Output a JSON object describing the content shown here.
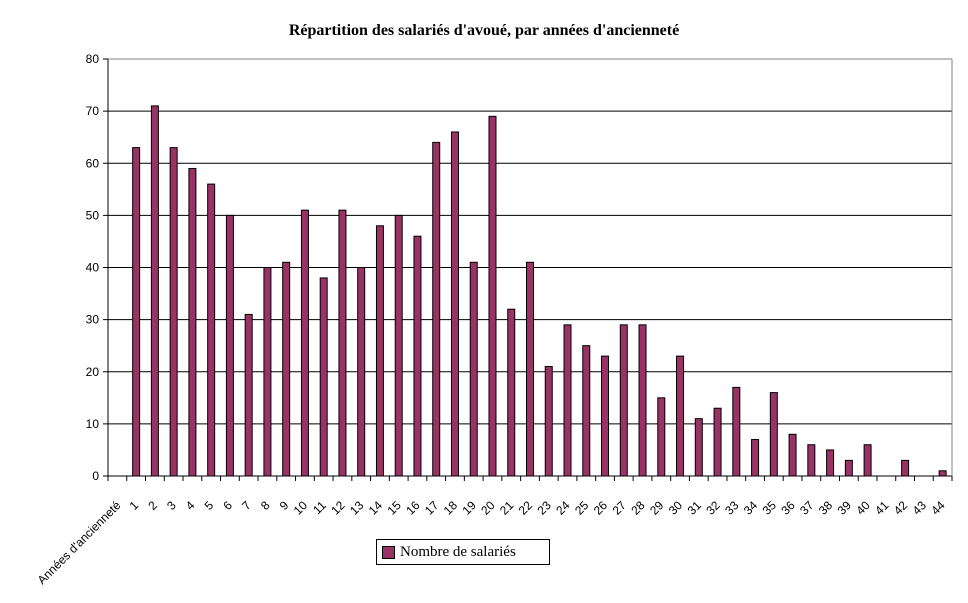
{
  "chart_data": {
    "type": "bar",
    "title": "Répartition des salariés d'avoué, par années d'ancienneté",
    "x_label": "Années d'ancienneté",
    "categories": [
      "1",
      "2",
      "3",
      "4",
      "5",
      "6",
      "7",
      "8",
      "9",
      "10",
      "11",
      "12",
      "13",
      "14",
      "15",
      "16",
      "17",
      "18",
      "19",
      "20",
      "21",
      "22",
      "23",
      "24",
      "25",
      "26",
      "27",
      "28",
      "29",
      "30",
      "31",
      "32",
      "33",
      "34",
      "35",
      "36",
      "37",
      "38",
      "39",
      "40",
      "41",
      "42",
      "43",
      "44"
    ],
    "series": [
      {
        "name": "Nombre de salariés",
        "color": "#993366",
        "values": [
          63,
          71,
          63,
          59,
          56,
          50,
          31,
          40,
          41,
          51,
          38,
          51,
          40,
          48,
          50,
          46,
          64,
          66,
          41,
          69,
          32,
          41,
          21,
          29,
          25,
          23,
          29,
          29,
          15,
          23,
          11,
          13,
          17,
          7,
          16,
          8,
          6,
          5,
          3,
          6,
          0,
          3,
          0,
          1
        ]
      }
    ],
    "ylim": [
      0,
      80
    ],
    "y_ticks": [
      0,
      10,
      20,
      30,
      40,
      50,
      60,
      70,
      80
    ],
    "grid": true,
    "legend_position": "bottom-center"
  }
}
